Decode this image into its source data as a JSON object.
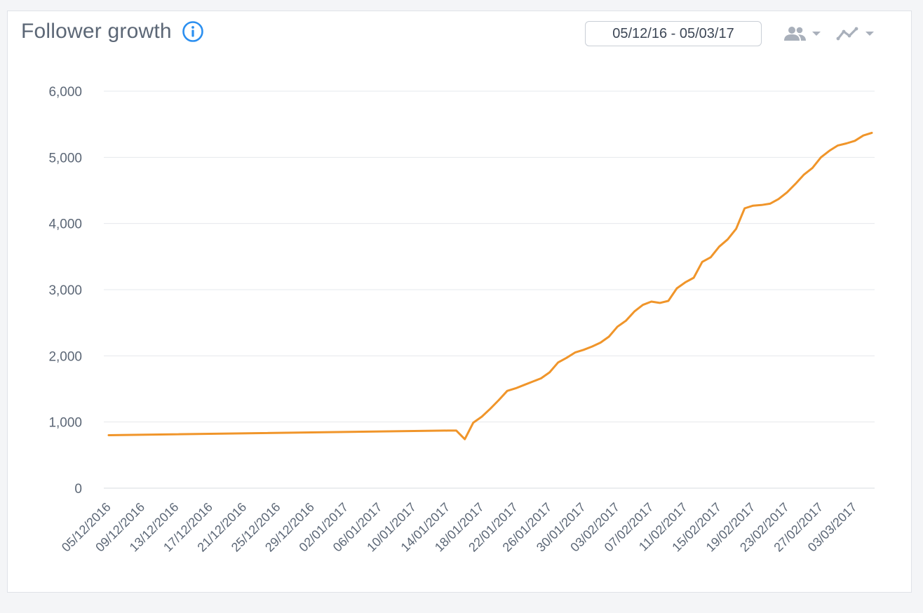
{
  "header": {
    "title": "Follower growth",
    "date_range": "05/12/16 - 05/03/17"
  },
  "icons": {
    "info": "info-circle-icon",
    "people": "people-icon",
    "line_chart": "line-chart-icon"
  },
  "colors": {
    "line": "#f0952a",
    "info": "#2b8ff0",
    "grid": "#e6e8ec",
    "icon_gray": "#a9b0bb"
  },
  "chart_data": {
    "type": "line",
    "title": "Follower growth",
    "xlabel": "",
    "ylabel": "",
    "ylim": [
      0,
      6000
    ],
    "yticks": [
      0,
      1000,
      2000,
      3000,
      4000,
      5000,
      6000
    ],
    "ytick_labels": [
      "0",
      "1,000",
      "2,000",
      "3,000",
      "4,000",
      "5,000",
      "6,000"
    ],
    "x_tick_labels": [
      "05/12/2016",
      "09/12/2016",
      "13/12/2016",
      "17/12/2016",
      "21/12/2016",
      "25/12/2016",
      "29/12/2016",
      "02/01/2017",
      "06/01/2017",
      "10/01/2017",
      "14/01/2017",
      "18/01/2017",
      "22/01/2017",
      "26/01/2017",
      "30/01/2017",
      "03/02/2017",
      "07/02/2017",
      "11/02/2017",
      "15/02/2017",
      "19/02/2017",
      "23/02/2017",
      "27/02/2017",
      "03/03/2017"
    ],
    "grid": true,
    "series": [
      {
        "x": [
          "05/12/2016",
          "14/01/2017",
          "15/01/2017",
          "16/01/2017",
          "17/01/2017",
          "18/01/2017",
          "19/01/2017",
          "20/01/2017",
          "21/01/2017",
          "22/01/2017",
          "23/01/2017",
          "24/01/2017",
          "25/01/2017",
          "26/01/2017",
          "27/01/2017",
          "28/01/2017",
          "29/01/2017",
          "30/01/2017",
          "31/01/2017",
          "01/02/2017",
          "02/02/2017",
          "03/02/2017",
          "04/02/2017",
          "05/02/2017",
          "06/02/2017",
          "07/02/2017",
          "08/02/2017",
          "09/02/2017",
          "10/02/2017",
          "11/02/2017",
          "12/02/2017",
          "13/02/2017",
          "14/02/2017",
          "15/02/2017",
          "16/02/2017",
          "17/02/2017",
          "18/02/2017",
          "19/02/2017",
          "20/02/2017",
          "21/02/2017",
          "22/02/2017",
          "23/02/2017",
          "24/02/2017",
          "25/02/2017",
          "26/02/2017",
          "27/02/2017",
          "28/02/2017",
          "01/03/2017",
          "02/03/2017",
          "03/03/2017",
          "04/03/2017",
          "05/03/2017"
        ],
        "values": [
          800,
          870,
          870,
          740,
          990,
          1080,
          1200,
          1330,
          1470,
          1510,
          1560,
          1610,
          1660,
          1750,
          1900,
          1970,
          2050,
          2090,
          2140,
          2200,
          2290,
          2440,
          2530,
          2670,
          2770,
          2820,
          2800,
          2830,
          3020,
          3110,
          3180,
          3420,
          3490,
          3650,
          3760,
          3920,
          4230,
          4270,
          4280,
          4300,
          4370,
          4470,
          4600,
          4740,
          4840,
          5000,
          5100,
          5180,
          5210,
          5250,
          5330,
          5370
        ]
      }
    ]
  }
}
